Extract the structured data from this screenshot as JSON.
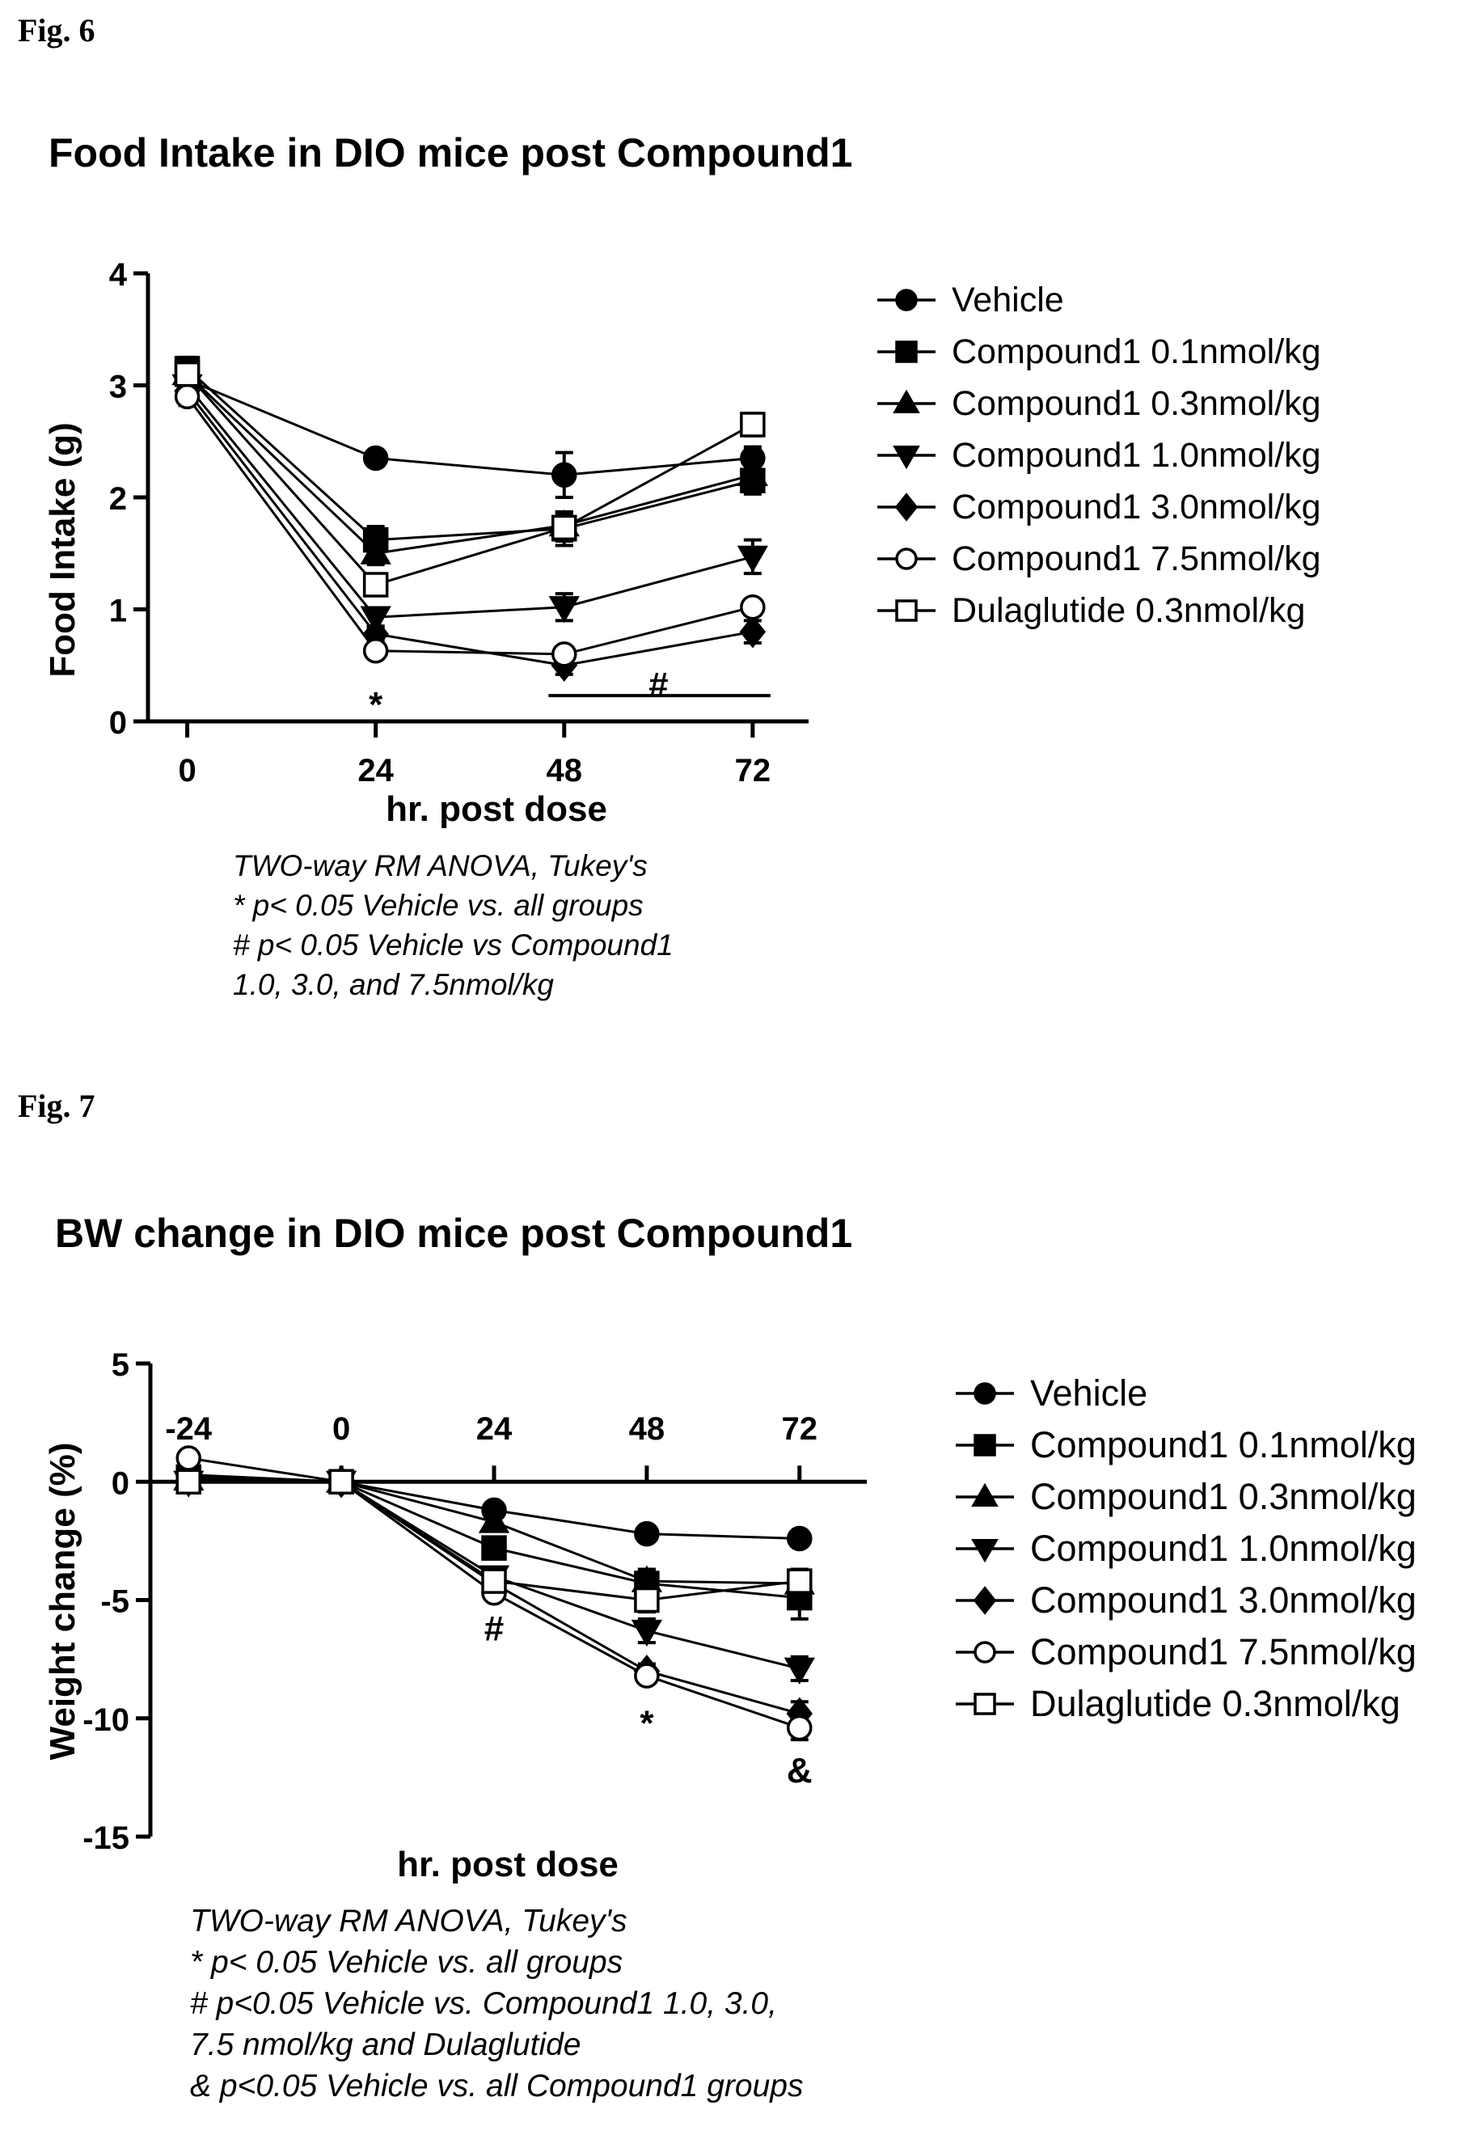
{
  "figures": [
    {
      "label": "Fig. 6",
      "title": "Food Intake in DIO mice post Compound1",
      "notes": [
        "TWO-way RM ANOVA, Tukey's",
        "* p< 0.05 Vehicle vs. all groups",
        "# p< 0.05 Vehicle vs Compound1",
        "1.0, 3.0, and 7.5nmol/kg"
      ]
    },
    {
      "label": "Fig. 7",
      "title": "BW change in DIO mice post Compound1",
      "notes": [
        "TWO-way RM ANOVA, Tukey's",
        "* p< 0.05 Vehicle vs. all groups",
        "# p<0.05 Vehicle vs. Compound1 1.0, 3.0,",
        "7.5 nmol/kg and Dulaglutide",
        "& p<0.05 Vehicle vs. all Compound1 groups"
      ]
    }
  ],
  "legend": [
    {
      "name": "Vehicle",
      "marker": "filled-circle"
    },
    {
      "name": "Compound1 0.1nmol/kg",
      "marker": "filled-square"
    },
    {
      "name": "Compound1 0.3nmol/kg",
      "marker": "filled-triangle-up"
    },
    {
      "name": "Compound1 1.0nmol/kg",
      "marker": "filled-triangle-down"
    },
    {
      "name": "Compound1 3.0nmol/kg",
      "marker": "filled-diamond"
    },
    {
      "name": "Compound1 7.5nmol/kg",
      "marker": "open-circle"
    },
    {
      "name": "Dulaglutide 0.3nmol/kg",
      "marker": "open-square"
    }
  ],
  "chart_data": [
    {
      "type": "line",
      "title": "Food Intake in DIO mice post Compound1",
      "xlabel": "hr. post dose",
      "ylabel": "Food Intake (g)",
      "x": [
        0,
        24,
        48,
        72
      ],
      "xticks": [
        "0",
        "24",
        "48",
        "72"
      ],
      "yticks": [
        "0",
        "1",
        "2",
        "3",
        "4"
      ],
      "ylim": [
        0,
        4
      ],
      "series": [
        {
          "name": "Vehicle",
          "marker": "filled-circle",
          "values": [
            3.05,
            2.35,
            2.2,
            2.35
          ],
          "err": [
            0.1,
            0.07,
            0.2,
            0.1
          ]
        },
        {
          "name": "Compound1 0.1nmol/kg",
          "marker": "filled-square",
          "values": [
            3.15,
            1.62,
            1.72,
            2.15
          ],
          "err": [
            0.1,
            0.12,
            0.15,
            0.12
          ]
        },
        {
          "name": "Compound1 0.3nmol/kg",
          "marker": "filled-triangle-up",
          "values": [
            3.1,
            1.5,
            1.75,
            2.2
          ],
          "err": [
            0.1,
            0.1,
            0.12,
            0.1
          ]
        },
        {
          "name": "Compound1 1.0nmol/kg",
          "marker": "filled-triangle-down",
          "values": [
            3.0,
            0.93,
            1.02,
            1.47
          ],
          "err": [
            0.1,
            0.08,
            0.12,
            0.15
          ]
        },
        {
          "name": "Compound1 3.0nmol/kg",
          "marker": "filled-diamond",
          "values": [
            2.95,
            0.78,
            0.5,
            0.8
          ],
          "err": [
            0.1,
            0.06,
            0.08,
            0.1
          ]
        },
        {
          "name": "Compound1 7.5nmol/kg",
          "marker": "open-circle",
          "values": [
            2.9,
            0.63,
            0.6,
            1.02
          ],
          "err": [
            0.08,
            0.05,
            0.06,
            0.07
          ]
        },
        {
          "name": "Dulaglutide 0.3nmol/kg",
          "marker": "open-square",
          "values": [
            3.1,
            1.22,
            1.73,
            2.65
          ],
          "err": [
            0.1,
            0.08,
            0.12,
            0.1
          ]
        }
      ],
      "annotations": [
        {
          "text": "*",
          "x": 24,
          "y": 0.15
        },
        {
          "text": "#",
          "x": 60,
          "y": 0.33,
          "bar_from": 46,
          "bar_to": 72,
          "bar_y": 0.23
        }
      ]
    },
    {
      "type": "line",
      "title": "BW change in DIO mice post Compound1",
      "xlabel": "hr. post dose",
      "ylabel": "Weight change (%)",
      "x": [
        -24,
        0,
        24,
        48,
        72
      ],
      "xticks": [
        "-24",
        "0",
        "24",
        "48",
        "72"
      ],
      "yticks": [
        "-15",
        "-10",
        "-5",
        "0",
        "5"
      ],
      "ylim": [
        -15,
        5
      ],
      "series": [
        {
          "name": "Vehicle",
          "marker": "filled-circle",
          "values": [
            0.1,
            0,
            -1.2,
            -2.2,
            -2.4
          ],
          "err": [
            0.3,
            0,
            0.15,
            0.2,
            0.3
          ]
        },
        {
          "name": "Compound1 0.1nmol/kg",
          "marker": "filled-square",
          "values": [
            0.2,
            0,
            -2.8,
            -4.3,
            -4.9
          ],
          "err": [
            0.3,
            0,
            0.3,
            0.6,
            0.9
          ]
        },
        {
          "name": "Compound1 0.3nmol/kg",
          "marker": "filled-triangle-up",
          "values": [
            0.1,
            0,
            -1.7,
            -4.2,
            -4.3
          ],
          "err": [
            0.3,
            0,
            0.3,
            0.5,
            0.6
          ]
        },
        {
          "name": "Compound1 1.0nmol/kg",
          "marker": "filled-triangle-down",
          "values": [
            0.0,
            0,
            -4.0,
            -6.3,
            -7.9
          ],
          "err": [
            0.3,
            0,
            0.3,
            0.5,
            0.5
          ]
        },
        {
          "name": "Compound1 3.0nmol/kg",
          "marker": "filled-diamond",
          "values": [
            0.3,
            0,
            -4.3,
            -8.0,
            -9.8
          ],
          "err": [
            0.3,
            0,
            0.3,
            0.3,
            0.5
          ]
        },
        {
          "name": "Compound1 7.5nmol/kg",
          "marker": "open-circle",
          "values": [
            1.0,
            0,
            -4.7,
            -8.2,
            -10.4
          ],
          "err": [
            0.3,
            0,
            0.3,
            0.3,
            0.5
          ]
        },
        {
          "name": "Dulaglutide 0.3nmol/kg",
          "marker": "open-square",
          "values": [
            0.0,
            0,
            -4.2,
            -5.0,
            -4.2
          ],
          "err": [
            0.3,
            0,
            0.3,
            0.5,
            0.5
          ]
        }
      ],
      "annotations": [
        {
          "text": "#",
          "x": 24,
          "y": -6.2
        },
        {
          "text": "*",
          "x": 48,
          "y": -10.2
        },
        {
          "text": "&",
          "x": 72,
          "y": -12.2
        }
      ]
    }
  ]
}
